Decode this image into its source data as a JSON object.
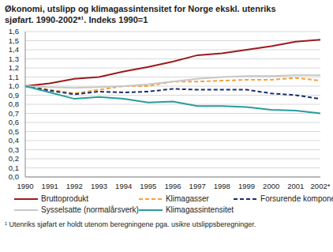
{
  "chart_data": {
    "type": "line",
    "title": "Økonomi, utslipp og klimagassintensitet for Norge ekskl. utenriks sjøfart. 1990-2002*¹. Indeks 1990=1",
    "footnote": "¹ Utenriks sjøfart er holdt utenom beregningene pga. usikre utslippsberegninger.",
    "categories": [
      "1990",
      "1991",
      "1992",
      "1993",
      "1994",
      "1995",
      "1996",
      "1997",
      "1998",
      "1999",
      "2000",
      "2001",
      "2002*"
    ],
    "series": [
      {
        "name": "Bruttoprodukt",
        "color": "#9b1b1e",
        "line_style": "solid",
        "values": [
          1.0,
          1.03,
          1.08,
          1.1,
          1.16,
          1.21,
          1.27,
          1.34,
          1.36,
          1.4,
          1.44,
          1.49,
          1.51
        ]
      },
      {
        "name": "Klimagasser",
        "color": "#f5a13a",
        "line_style": "dashed",
        "values": [
          1.0,
          0.96,
          0.92,
          0.96,
          1.0,
          1.0,
          1.05,
          1.05,
          1.06,
          1.07,
          1.07,
          1.09,
          1.06
        ]
      },
      {
        "name": "Forsurende komponenter",
        "color": "#1b2d6b",
        "line_style": "dashed",
        "values": [
          1.0,
          0.95,
          0.91,
          0.94,
          0.93,
          0.94,
          0.97,
          0.96,
          0.96,
          0.96,
          0.92,
          0.9,
          0.86
        ]
      },
      {
        "name": "Sysselsatte (normalårsverk)",
        "color": "#c8c8c8",
        "line_style": "solid",
        "values": [
          1.0,
          0.99,
          0.98,
          0.99,
          1.0,
          1.02,
          1.05,
          1.08,
          1.1,
          1.11,
          1.11,
          1.12,
          1.12
        ]
      },
      {
        "name": "Klimagassintensitet",
        "color": "#2a9c9c",
        "line_style": "solid",
        "values": [
          1.0,
          0.93,
          0.86,
          0.88,
          0.86,
          0.82,
          0.83,
          0.78,
          0.78,
          0.77,
          0.74,
          0.73,
          0.7
        ]
      }
    ],
    "ylim": [
      0,
      1.6
    ],
    "yticks": [
      {
        "value": 0,
        "label": "0,0"
      },
      {
        "value": 0.1,
        "label": "0,1"
      },
      {
        "value": 0.2,
        "label": "0,2"
      },
      {
        "value": 0.3,
        "label": "0,3"
      },
      {
        "value": 0.4,
        "label": "0,4"
      },
      {
        "value": 0.5,
        "label": "0,5"
      },
      {
        "value": 0.6,
        "label": "0,6"
      },
      {
        "value": 0.7,
        "label": "0,7"
      },
      {
        "value": 0.8,
        "label": "0,8"
      },
      {
        "value": 0.9,
        "label": "0,9"
      },
      {
        "value": 1,
        "label": "1,0"
      },
      {
        "value": 1.1,
        "label": "1,1"
      },
      {
        "value": 1.2,
        "label": "1,2"
      },
      {
        "value": 1.3,
        "label": "1,3"
      },
      {
        "value": 1.4,
        "label": "1,4"
      },
      {
        "value": 1.5,
        "label": "1,5"
      },
      {
        "value": 1.6,
        "label": "1,6"
      }
    ],
    "grid": true,
    "legend": "bottom"
  }
}
